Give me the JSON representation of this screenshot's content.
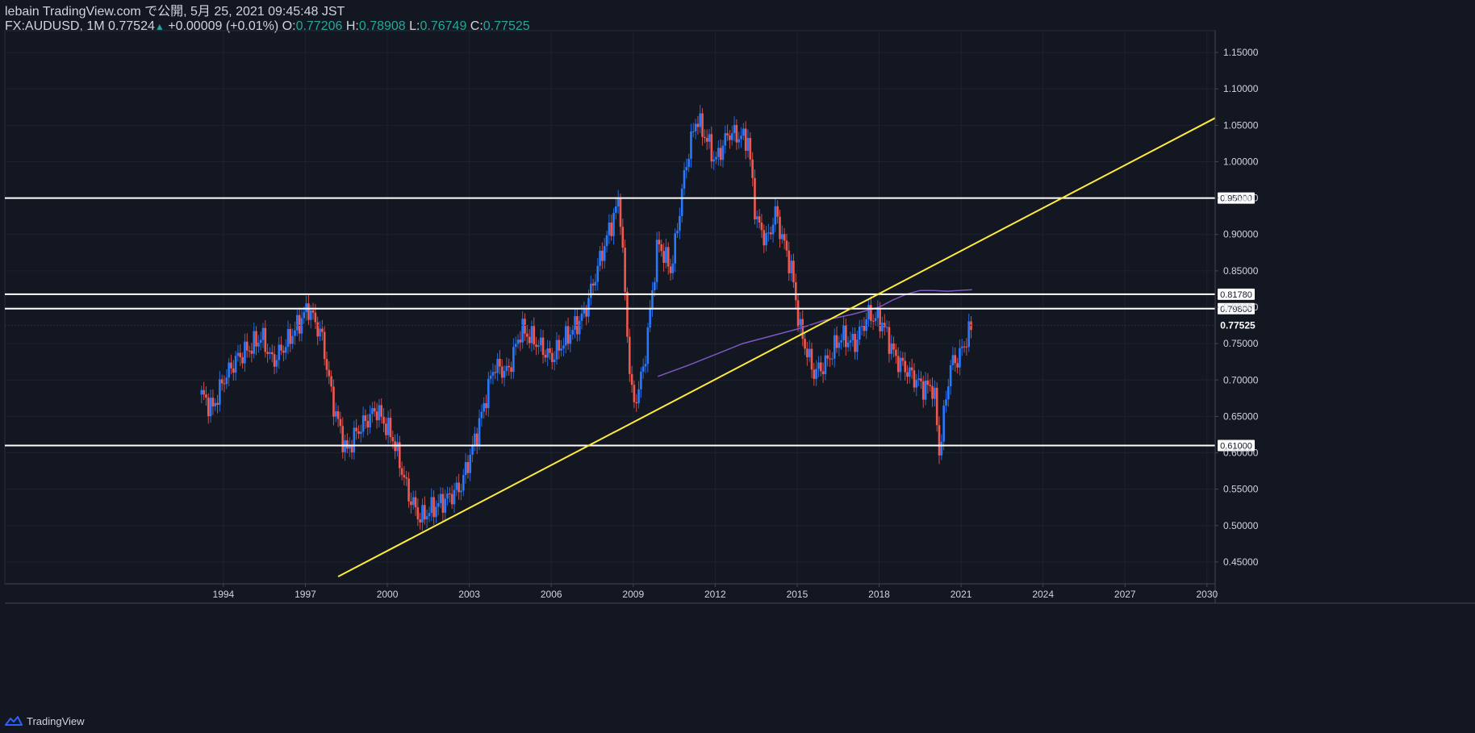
{
  "header": {
    "publish_line": "lebain TradingView.com で公開, 5月 25, 2021 09:45:48 JST",
    "symbol": "FX:AUDUSD, 1M",
    "last": "0.77524",
    "change": "+0.00009 (+0.01%)",
    "o_label": "O:",
    "o_value": "0.77206",
    "h_label": "H:",
    "h_value": "0.78908",
    "l_label": "L:",
    "l_value": "0.76749",
    "c_label": "C:",
    "c_value": "0.77525"
  },
  "footer": {
    "brand": "TradingView"
  },
  "colors": {
    "background": "#131722",
    "up": "#2979ff",
    "down": "#f0584f",
    "trendline": "#ffeb3b",
    "ma": "#7e57c2",
    "level": "#ffffff",
    "grid": "#1e222d"
  },
  "chart_data": {
    "type": "candlestick",
    "symbol": "FX:AUDUSD",
    "interval": "1M",
    "x_ticks": [
      "1994",
      "1997",
      "2000",
      "2003",
      "2006",
      "2009",
      "2012",
      "2015",
      "2018",
      "2021",
      "2024",
      "2027",
      "2030"
    ],
    "y_ticks": [
      "1.15000",
      "1.10000",
      "1.05000",
      "1.00000",
      "0.95000",
      "0.90000",
      "0.85000",
      "0.80000",
      "0.75000",
      "0.70000",
      "0.65000",
      "0.60000",
      "0.55000",
      "0.50000",
      "0.45000"
    ],
    "ylim": [
      0.42,
      1.18
    ],
    "xlim": [
      1986.0,
      2030.3
    ],
    "last_price": {
      "label": "0.77525",
      "value": 0.77525
    },
    "horizontal_levels": [
      {
        "label": "0.95000",
        "value": 0.95
      },
      {
        "label": "0.81780",
        "value": 0.8178
      },
      {
        "label": "0.79800",
        "value": 0.798
      },
      {
        "label": "0.61000",
        "value": 0.61
      }
    ],
    "trendline": {
      "x1": 1998.2,
      "y1": 0.43,
      "x2": 2030.3,
      "y2": 1.06
    },
    "moving_average": [
      [
        2009.9,
        0.705
      ],
      [
        2011.0,
        0.72
      ],
      [
        2012.0,
        0.735
      ],
      [
        2013.0,
        0.75
      ],
      [
        2014.0,
        0.76
      ],
      [
        2015.0,
        0.77
      ],
      [
        2016.0,
        0.782
      ],
      [
        2017.0,
        0.79
      ],
      [
        2018.0,
        0.8
      ],
      [
        2018.5,
        0.81
      ],
      [
        2019.0,
        0.818
      ],
      [
        2019.5,
        0.823
      ],
      [
        2020.0,
        0.823
      ],
      [
        2020.5,
        0.822
      ],
      [
        2021.4,
        0.824
      ]
    ],
    "anchors": [
      [
        1993.2,
        0.68
      ],
      [
        1993.6,
        0.66
      ],
      [
        1994.0,
        0.7
      ],
      [
        1994.5,
        0.73
      ],
      [
        1995.0,
        0.745
      ],
      [
        1995.4,
        0.76
      ],
      [
        1995.8,
        0.725
      ],
      [
        1996.3,
        0.75
      ],
      [
        1996.8,
        0.78
      ],
      [
        1997.1,
        0.8
      ],
      [
        1997.6,
        0.76
      ],
      [
        1998.0,
        0.67
      ],
      [
        1998.5,
        0.6
      ],
      [
        1998.9,
        0.63
      ],
      [
        1999.6,
        0.66
      ],
      [
        2000.2,
        0.62
      ],
      [
        2000.8,
        0.54
      ],
      [
        2001.2,
        0.51
      ],
      [
        2001.7,
        0.525
      ],
      [
        2002.3,
        0.54
      ],
      [
        2002.7,
        0.555
      ],
      [
        2003.3,
        0.63
      ],
      [
        2003.9,
        0.72
      ],
      [
        2004.4,
        0.71
      ],
      [
        2004.9,
        0.77
      ],
      [
        2005.5,
        0.75
      ],
      [
        2006.0,
        0.73
      ],
      [
        2006.6,
        0.76
      ],
      [
        2007.2,
        0.79
      ],
      [
        2007.9,
        0.88
      ],
      [
        2008.5,
        0.95
      ],
      [
        2008.8,
        0.75
      ],
      [
        2009.0,
        0.66
      ],
      [
        2009.4,
        0.72
      ],
      [
        2009.9,
        0.89
      ],
      [
        2010.4,
        0.85
      ],
      [
        2010.9,
        0.99
      ],
      [
        2011.3,
        1.06
      ],
      [
        2011.7,
        1.03
      ],
      [
        2012.0,
        1.0
      ],
      [
        2012.5,
        1.04
      ],
      [
        2013.2,
        1.03
      ],
      [
        2013.5,
        0.92
      ],
      [
        2013.9,
        0.89
      ],
      [
        2014.2,
        0.93
      ],
      [
        2014.8,
        0.85
      ],
      [
        2015.1,
        0.77
      ],
      [
        2015.6,
        0.71
      ],
      [
        2016.0,
        0.72
      ],
      [
        2016.6,
        0.76
      ],
      [
        2017.1,
        0.75
      ],
      [
        2017.6,
        0.79
      ],
      [
        2018.1,
        0.78
      ],
      [
        2018.6,
        0.73
      ],
      [
        2019.1,
        0.71
      ],
      [
        2019.6,
        0.69
      ],
      [
        2020.0,
        0.69
      ],
      [
        2020.2,
        0.6
      ],
      [
        2020.6,
        0.72
      ],
      [
        2020.9,
        0.73
      ],
      [
        2021.4,
        0.775
      ]
    ]
  }
}
